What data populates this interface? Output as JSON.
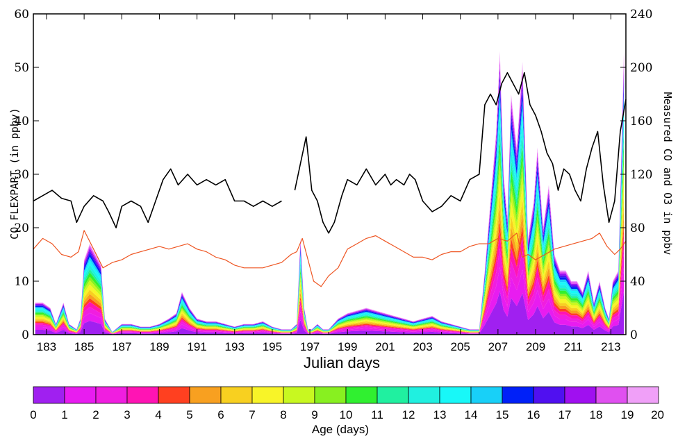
{
  "chart_data": {
    "type": "area",
    "title": "",
    "xlabel": "Julian days",
    "ylabel_left": "CO FLEXPART (in ppbv)",
    "ylabel_right": "Measured CO and O3 in ppbv",
    "xlim": [
      182.3,
      213.8
    ],
    "ylim_left": [
      0,
      60
    ],
    "ylim_right": [
      0,
      240
    ],
    "x_ticks": [
      "183",
      "185",
      "187",
      "189",
      "191",
      "193",
      "195",
      "197",
      "199",
      "201",
      "203",
      "205",
      "207",
      "209",
      "211",
      "213"
    ],
    "y_left_ticks": [
      "0",
      "10",
      "20",
      "30",
      "40",
      "50",
      "60"
    ],
    "y_right_ticks": [
      "0",
      "40",
      "80",
      "120",
      "160",
      "200",
      "240"
    ],
    "stacked_total_co_flexpart": {
      "x": [
        182.4,
        182.8,
        183.2,
        183.5,
        183.9,
        184.2,
        184.6,
        184.8,
        185.0,
        185.3,
        185.6,
        185.9,
        186.1,
        186.5,
        187.0,
        187.5,
        188.0,
        188.5,
        189.0,
        189.5,
        189.9,
        190.2,
        190.6,
        191.0,
        191.5,
        192.0,
        192.5,
        193.0,
        193.5,
        194.0,
        194.5,
        195.0,
        195.5,
        196.0,
        196.3,
        196.5,
        196.7,
        196.9,
        197.1,
        197.4,
        197.7,
        198.0,
        198.5,
        199.0,
        199.5,
        200.0,
        200.5,
        201.0,
        201.5,
        202.0,
        202.5,
        203.0,
        203.5,
        204.0,
        204.5,
        205.0,
        205.5,
        206.0,
        206.3,
        206.6,
        206.9,
        207.1,
        207.3,
        207.5,
        207.7,
        208.0,
        208.3,
        208.6,
        208.9,
        209.1,
        209.4,
        209.7,
        210.0,
        210.3,
        210.6,
        210.9,
        211.2,
        211.5,
        211.8,
        212.1,
        212.4,
        212.7,
        212.9,
        213.1,
        213.4,
        213.7
      ],
      "total": [
        6,
        6,
        5,
        2,
        6,
        2,
        1,
        3,
        14,
        17,
        15,
        13,
        3,
        0.5,
        2,
        2,
        1.5,
        1.5,
        2,
        3,
        4,
        8,
        5,
        3,
        2.5,
        2.5,
        2,
        1.5,
        2,
        2,
        2.5,
        1.5,
        1,
        1,
        2,
        18,
        5,
        1,
        1,
        2,
        1,
        1,
        3,
        4,
        4.5,
        5,
        4.5,
        4,
        3.5,
        3,
        2.5,
        3,
        3.5,
        2.5,
        2,
        1.5,
        1,
        1,
        12,
        25,
        38,
        53,
        30,
        22,
        45,
        35,
        51,
        18,
        25,
        35,
        20,
        28,
        15,
        12,
        12,
        10,
        10,
        8,
        12,
        6,
        10,
        5,
        3,
        10,
        12,
        54
      ]
    },
    "age_colorbar": {
      "label": "Age (days)",
      "ticks": [
        "0",
        "1",
        "2",
        "3",
        "4",
        "5",
        "6",
        "7",
        "8",
        "9",
        "10",
        "11",
        "12",
        "13",
        "14",
        "15",
        "16",
        "17",
        "18",
        "19",
        "20"
      ],
      "colors": [
        "#a020f0",
        "#e81cf0",
        "#f01ee0",
        "#ff14b4",
        "#ff4020",
        "#f8a020",
        "#f8d020",
        "#f8f428",
        "#c8f820",
        "#88f020",
        "#30f030",
        "#20f0a0",
        "#20f0e0",
        "#18f8f8",
        "#18d0f8",
        "#0020f8",
        "#5010f0",
        "#a010f0",
        "#e050f0",
        "#f0a0f8"
      ]
    },
    "measured_co": {
      "color": "#000000",
      "x": [
        182.3,
        182.8,
        183.3,
        183.8,
        184.3,
        184.6,
        185.0,
        185.5,
        186.0,
        186.3,
        186.7,
        187.0,
        187.5,
        188.0,
        188.4,
        188.8,
        189.2,
        189.6,
        190.0,
        190.5,
        191.0,
        191.5,
        192.0,
        192.5,
        193.0,
        193.5,
        194.0,
        194.5,
        195.0,
        195.5,
        195.9,
        196.2,
        196.5,
        196.8,
        197.1,
        197.4,
        197.7,
        198.0,
        198.3,
        198.7,
        199.0,
        199.5,
        200.0,
        200.5,
        201.0,
        201.3,
        201.6,
        202.0,
        202.3,
        202.6,
        203.0,
        203.5,
        204.0,
        204.5,
        205.0,
        205.5,
        206.0,
        206.3,
        206.6,
        206.9,
        207.2,
        207.5,
        207.8,
        208.1,
        208.4,
        208.7,
        209.0,
        209.3,
        209.6,
        209.9,
        210.2,
        210.5,
        210.8,
        211.1,
        211.4,
        211.7,
        212.0,
        212.3,
        212.6,
        212.9,
        213.2,
        213.5,
        213.8
      ],
      "y": [
        100,
        104,
        108,
        102,
        100,
        84,
        96,
        104,
        100,
        92,
        80,
        96,
        100,
        96,
        84,
        100,
        116,
        124,
        112,
        120,
        112,
        116,
        112,
        116,
        100,
        100,
        96,
        100,
        96,
        100,
        null,
        108,
        128,
        148,
        108,
        100,
        84,
        76,
        84,
        104,
        116,
        112,
        124,
        112,
        120,
        112,
        116,
        112,
        120,
        116,
        100,
        92,
        96,
        104,
        100,
        116,
        120,
        172,
        180,
        172,
        188,
        196,
        188,
        180,
        196,
        172,
        164,
        152,
        136,
        128,
        108,
        124,
        120,
        108,
        100,
        124,
        140,
        152,
        112,
        84,
        100,
        152,
        176
      ]
    },
    "measured_o3": {
      "color": "#ee5522",
      "x": [
        182.3,
        182.8,
        183.3,
        183.8,
        184.3,
        184.7,
        185.0,
        185.5,
        186.0,
        186.5,
        187.0,
        187.5,
        188.0,
        188.5,
        189.0,
        189.5,
        190.0,
        190.5,
        191.0,
        191.5,
        192.0,
        192.5,
        193.0,
        193.5,
        194.0,
        194.5,
        195.0,
        195.5,
        196.0,
        196.3,
        196.6,
        196.9,
        197.2,
        197.6,
        198.0,
        198.5,
        199.0,
        199.5,
        200.0,
        200.5,
        201.0,
        201.5,
        202.0,
        202.5,
        203.0,
        203.5,
        204.0,
        204.5,
        205.0,
        205.5,
        206.0,
        206.5,
        207.0,
        207.5,
        208.0,
        208.3,
        208.6,
        209.0,
        209.5,
        210.0,
        210.5,
        211.0,
        211.5,
        212.0,
        212.4,
        212.8,
        213.2,
        213.5,
        213.8
      ],
      "y": [
        64,
        72,
        68,
        60,
        58,
        62,
        78,
        64,
        50,
        54,
        56,
        60,
        62,
        64,
        66,
        64,
        66,
        68,
        64,
        62,
        58,
        56,
        52,
        50,
        50,
        50,
        52,
        54,
        60,
        62,
        72,
        56,
        40,
        36,
        44,
        50,
        64,
        68,
        72,
        74,
        70,
        66,
        62,
        58,
        58,
        56,
        60,
        62,
        62,
        66,
        68,
        68,
        72,
        70,
        76,
        58,
        60,
        56,
        60,
        64,
        66,
        68,
        70,
        72,
        76,
        66,
        60,
        64,
        70
      ]
    }
  }
}
